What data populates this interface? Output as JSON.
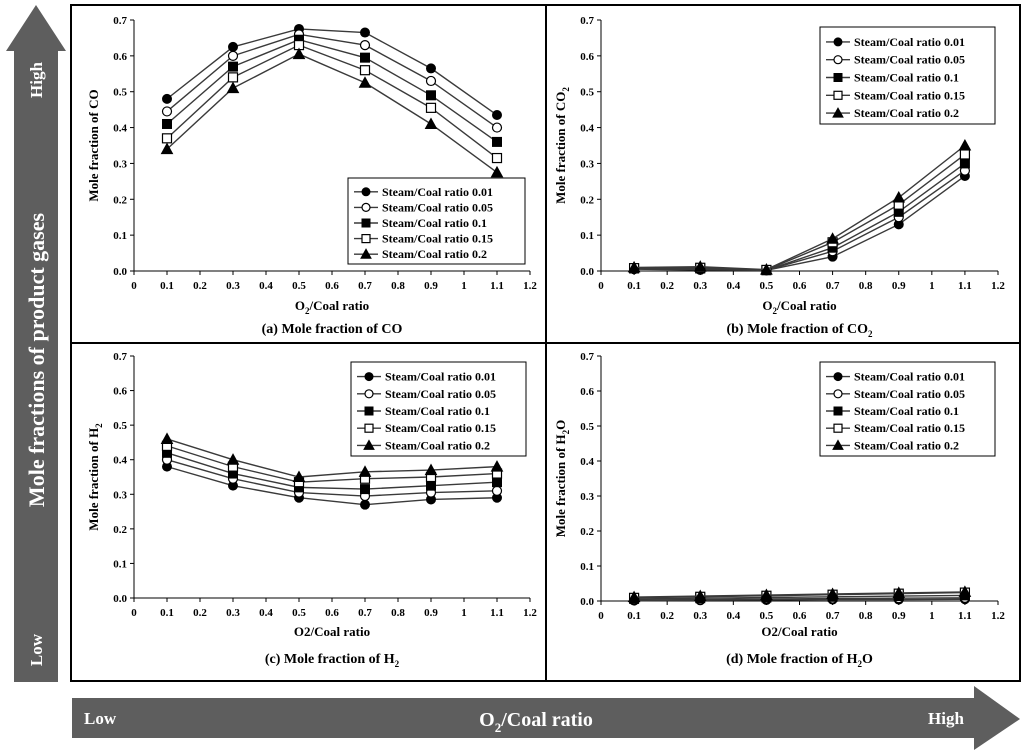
{
  "colors": {
    "frame": "#000000",
    "line": "#3a3a3a",
    "arrow_fill": "#5e5e5e",
    "arrow_text": "#ffffff",
    "background": "#ffffff"
  },
  "left_arrow": {
    "label": "Mole fractions of product gases",
    "high": "High",
    "low": "Low"
  },
  "bottom_arrow": {
    "label_main": "O",
    "label_sub": "2",
    "label_tail": "/Coal ratio",
    "low": "Low",
    "high": "High"
  },
  "chart_data": [
    {
      "id": "a",
      "type": "line",
      "caption": "(a) Mole fraction of CO",
      "caption_main": "(a) Mole fraction of CO",
      "caption_sub": "",
      "caption_tail": "",
      "xlabel_main": "O",
      "xlabel_sub": "2",
      "xlabel_tail": "/Coal ratio",
      "ylabel_main": "Mole fraction of CO",
      "ylabel_sub": "",
      "ylabel_tail": "",
      "xlim": [
        0,
        1.2
      ],
      "ylim": [
        0,
        0.7
      ],
      "xticks": [
        "0",
        "0.1",
        "0.2",
        "0.3",
        "0.4",
        "0.5",
        "0.6",
        "0.7",
        "0.8",
        "0.9",
        "1",
        "1.1",
        "1.2"
      ],
      "yticks": [
        "0.0",
        "0.1",
        "0.2",
        "0.3",
        "0.4",
        "0.5",
        "0.6",
        "0.7"
      ],
      "x": [
        0.1,
        0.3,
        0.5,
        0.7,
        0.9,
        1.1
      ],
      "legend_position": "bottom-right",
      "series": [
        {
          "name": "Steam/Coal ratio 0.01",
          "marker": "filled-circle",
          "values": [
            0.48,
            0.625,
            0.675,
            0.665,
            0.565,
            0.435
          ]
        },
        {
          "name": "Steam/Coal ratio 0.05",
          "marker": "open-circle",
          "values": [
            0.445,
            0.6,
            0.66,
            0.63,
            0.53,
            0.4
          ]
        },
        {
          "name": "Steam/Coal ratio 0.1",
          "marker": "filled-square",
          "values": [
            0.41,
            0.57,
            0.645,
            0.595,
            0.49,
            0.36
          ]
        },
        {
          "name": "Steam/Coal ratio 0.15",
          "marker": "open-square",
          "values": [
            0.37,
            0.54,
            0.63,
            0.56,
            0.455,
            0.315
          ]
        },
        {
          "name": "Steam/Coal ratio 0.2",
          "marker": "filled-triangle",
          "values": [
            0.34,
            0.51,
            0.605,
            0.525,
            0.41,
            0.275
          ]
        }
      ]
    },
    {
      "id": "b",
      "type": "line",
      "caption": "(b) Mole fraction of CO2",
      "caption_main": "(b) Mole fraction of CO",
      "caption_sub": "2",
      "caption_tail": "",
      "xlabel_main": "O",
      "xlabel_sub": "2",
      "xlabel_tail": "/Coal ratio",
      "ylabel_main": "Mole fraction of CO",
      "ylabel_sub": "2",
      "ylabel_tail": "",
      "xlim": [
        0,
        1.2
      ],
      "ylim": [
        0,
        0.7
      ],
      "xticks": [
        "0",
        "0.1",
        "0.2",
        "0.3",
        "0.4",
        "0.5",
        "0.6",
        "0.7",
        "0.8",
        "0.9",
        "1",
        "1.1",
        "1.2"
      ],
      "yticks": [
        "0.0",
        "0.1",
        "0.2",
        "0.3",
        "0.4",
        "0.5",
        "0.6",
        "0.7"
      ],
      "x": [
        0.1,
        0.3,
        0.5,
        0.7,
        0.9,
        1.1
      ],
      "legend_position": "top-right",
      "series": [
        {
          "name": "Steam/Coal ratio 0.01",
          "marker": "filled-circle",
          "values": [
            0.005,
            0.003,
            0.002,
            0.04,
            0.13,
            0.265
          ]
        },
        {
          "name": "Steam/Coal ratio 0.05",
          "marker": "open-circle",
          "values": [
            0.006,
            0.005,
            0.002,
            0.055,
            0.15,
            0.28
          ]
        },
        {
          "name": "Steam/Coal ratio 0.1",
          "marker": "filled-square",
          "values": [
            0.007,
            0.007,
            0.002,
            0.065,
            0.165,
            0.3
          ]
        },
        {
          "name": "Steam/Coal ratio 0.15",
          "marker": "open-square",
          "values": [
            0.008,
            0.009,
            0.003,
            0.08,
            0.185,
            0.325
          ]
        },
        {
          "name": "Steam/Coal ratio 0.2",
          "marker": "filled-triangle",
          "values": [
            0.01,
            0.012,
            0.004,
            0.09,
            0.205,
            0.35
          ]
        }
      ]
    },
    {
      "id": "c",
      "type": "line",
      "caption": "(c) Mole fraction of H2",
      "caption_main": "(c) Mole fraction of H",
      "caption_sub": "2",
      "caption_tail": "",
      "xlabel_main": "O2/Coal ratio",
      "xlabel_sub": "",
      "xlabel_tail": "",
      "ylabel_main": "Mole fraction of H",
      "ylabel_sub": "2",
      "ylabel_tail": "",
      "xlim": [
        0,
        1.2
      ],
      "ylim": [
        0,
        0.7
      ],
      "xticks": [
        "0",
        "0.1",
        "0.2",
        "0.3",
        "0.4",
        "0.5",
        "0.6",
        "0.7",
        "0.8",
        "0.9",
        "1",
        "1.1",
        "1.2"
      ],
      "yticks": [
        "0.0",
        "0.1",
        "0.2",
        "0.3",
        "0.4",
        "0.5",
        "0.6",
        "0.7"
      ],
      "x": [
        0.1,
        0.3,
        0.5,
        0.7,
        0.9,
        1.1
      ],
      "legend_position": "top-right",
      "series": [
        {
          "name": "Steam/Coal ratio 0.01",
          "marker": "filled-circle",
          "values": [
            0.38,
            0.325,
            0.29,
            0.27,
            0.285,
            0.29
          ]
        },
        {
          "name": "Steam/Coal ratio 0.05",
          "marker": "open-circle",
          "values": [
            0.4,
            0.345,
            0.305,
            0.295,
            0.305,
            0.31
          ]
        },
        {
          "name": "Steam/Coal ratio 0.1",
          "marker": "filled-square",
          "values": [
            0.42,
            0.36,
            0.32,
            0.315,
            0.325,
            0.335
          ]
        },
        {
          "name": "Steam/Coal ratio 0.15",
          "marker": "open-square",
          "values": [
            0.44,
            0.38,
            0.335,
            0.345,
            0.35,
            0.36
          ]
        },
        {
          "name": "Steam/Coal ratio 0.2",
          "marker": "filled-triangle",
          "values": [
            0.46,
            0.4,
            0.35,
            0.365,
            0.37,
            0.38
          ]
        }
      ]
    },
    {
      "id": "d",
      "type": "line",
      "caption": "(d) Mole fraction of H2O",
      "caption_main": "(d) Mole fraction of H",
      "caption_sub": "2",
      "caption_tail": "O",
      "xlabel_main": "O2/Coal ratio",
      "xlabel_sub": "",
      "xlabel_tail": "",
      "ylabel_main": "Mole fraction of H",
      "ylabel_sub": "2",
      "ylabel_tail": "O",
      "xlim": [
        0,
        1.2
      ],
      "ylim": [
        0,
        0.7
      ],
      "xticks": [
        "0",
        "0.1",
        "0.2",
        "0.3",
        "0.4",
        "0.5",
        "0.6",
        "0.7",
        "0.8",
        "0.9",
        "1",
        "1.1",
        "1.2"
      ],
      "yticks": [
        "0.0",
        "0.1",
        "0.2",
        "0.3",
        "0.4",
        "0.5",
        "0.6",
        "0.7"
      ],
      "x": [
        0.1,
        0.3,
        0.5,
        0.7,
        0.9,
        1.1
      ],
      "legend_position": "top-right",
      "series": [
        {
          "name": "Steam/Coal ratio 0.01",
          "marker": "filled-circle",
          "values": [
            0.001,
            0.002,
            0.003,
            0.004,
            0.004,
            0.005
          ]
        },
        {
          "name": "Steam/Coal ratio 0.05",
          "marker": "open-circle",
          "values": [
            0.003,
            0.004,
            0.006,
            0.007,
            0.008,
            0.009
          ]
        },
        {
          "name": "Steam/Coal ratio 0.1",
          "marker": "filled-square",
          "values": [
            0.006,
            0.008,
            0.01,
            0.012,
            0.014,
            0.016
          ]
        },
        {
          "name": "Steam/Coal ratio 0.15",
          "marker": "open-square",
          "values": [
            0.009,
            0.012,
            0.015,
            0.018,
            0.021,
            0.024
          ]
        },
        {
          "name": "Steam/Coal ratio 0.2",
          "marker": "filled-triangle",
          "values": [
            0.011,
            0.014,
            0.017,
            0.02,
            0.023,
            0.026
          ]
        }
      ]
    }
  ]
}
